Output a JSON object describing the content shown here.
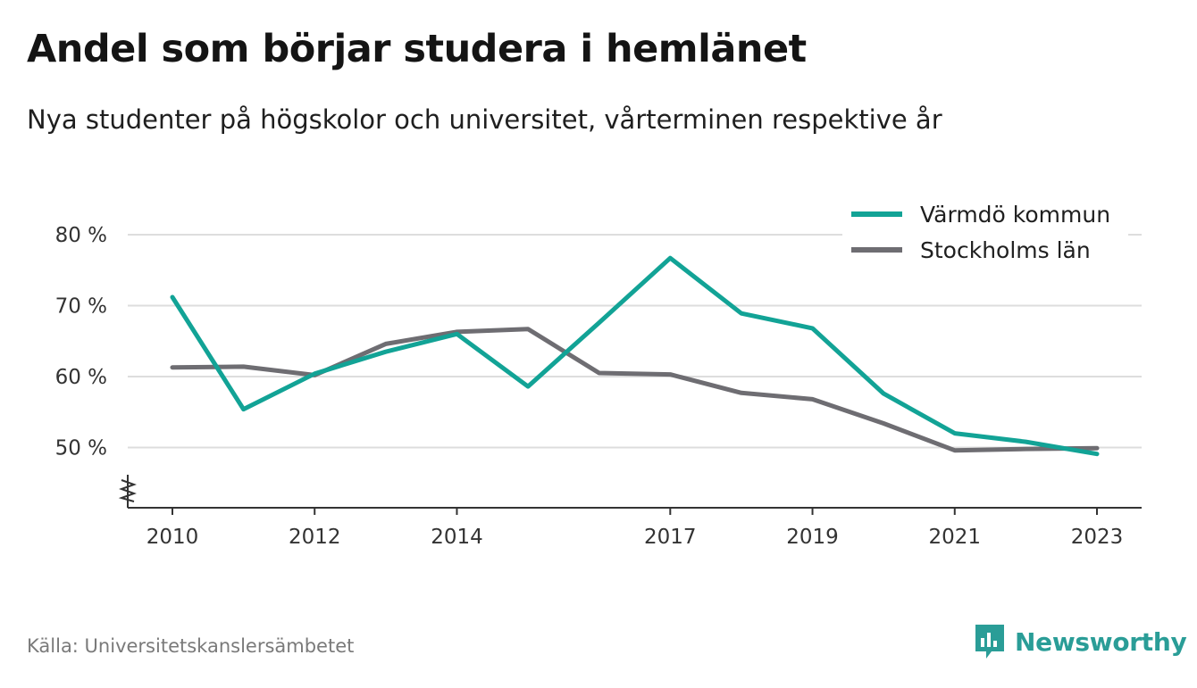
{
  "title": "Andel som börjar studera i hemlänet",
  "subtitle": "Nya studenter på högskolor och universitet, vårterminen respektive år",
  "source": "Källa: Universitetskanslersämbetet",
  "brand": {
    "name": "Newsworthy",
    "color": "#2a9d97",
    "icon": "newsworthy-chart-logo-icon"
  },
  "colors": {
    "series1": "#12a396",
    "series2": "#6e6d72",
    "grid": "#dddddd",
    "axis": "#333333"
  },
  "chart_data": {
    "type": "line",
    "title": "Andel som börjar studera i hemlänet",
    "subtitle": "Nya studenter på högskolor och universitet, vårterminen respektive år",
    "x": [
      2010,
      2011,
      2012,
      2013,
      2014,
      2015,
      2016,
      2017,
      2018,
      2019,
      2020,
      2021,
      2022,
      2023
    ],
    "x_ticks": [
      "2010",
      "2012",
      "2014",
      "2017",
      "2019",
      "2021",
      "2023"
    ],
    "y_ticks": [
      "50 %",
      "60 %",
      "70 %",
      "80 %"
    ],
    "y_tick_values": [
      50,
      60,
      70,
      80
    ],
    "ylim": [
      42,
      80
    ],
    "y_axis_break": true,
    "grid": "horizontal",
    "legend_position": "top-right",
    "series": [
      {
        "name": "Värmdö kommun",
        "values": [
          71.2,
          55.4,
          60.4,
          63.5,
          66.0,
          58.6,
          67.6,
          76.7,
          68.9,
          66.8,
          57.6,
          52.0,
          50.8,
          49.1
        ]
      },
      {
        "name": "Stockholms län",
        "values": [
          61.3,
          61.4,
          60.2,
          64.6,
          66.3,
          66.7,
          60.5,
          60.3,
          57.7,
          56.8,
          53.4,
          49.6,
          49.8,
          49.9
        ]
      }
    ]
  }
}
